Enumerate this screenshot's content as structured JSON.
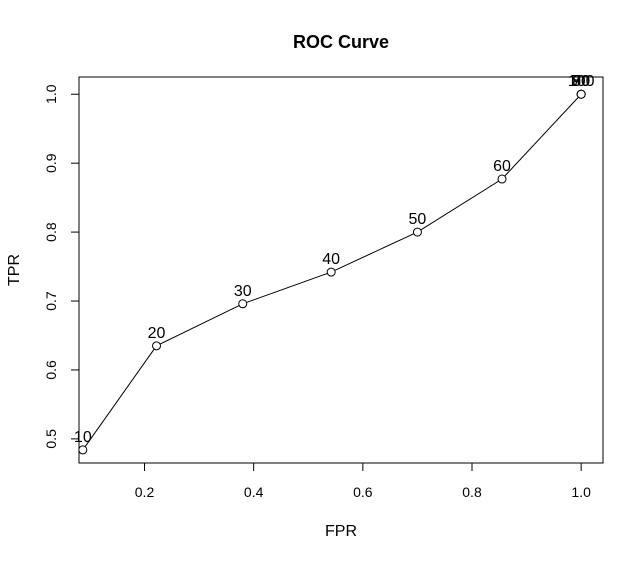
{
  "chart_data": {
    "type": "line",
    "title": "ROC Curve",
    "xlabel": "FPR",
    "ylabel": "TPR",
    "xlim": [
      0.08,
      1.04
    ],
    "ylim": [
      0.465,
      1.025
    ],
    "x_ticks": [
      0.2,
      0.4,
      0.6,
      0.8,
      1.0
    ],
    "x_tick_labels": [
      "0.2",
      "0.4",
      "0.6",
      "0.8",
      "1.0"
    ],
    "y_ticks": [
      0.5,
      0.6,
      0.7,
      0.8,
      0.9,
      1.0
    ],
    "y_tick_labels": [
      "0.5",
      "0.6",
      "0.7",
      "0.8",
      "0.9",
      "1.0"
    ],
    "grid": false,
    "series": [
      {
        "x": [
          0.087,
          0.222,
          0.38,
          0.542,
          0.7,
          0.855,
          1.0,
          1.0,
          1.0,
          1.0
        ],
        "y": [
          0.484,
          0.635,
          0.696,
          0.742,
          0.8,
          0.877,
          1.0,
          1.0,
          1.0,
          1.0
        ],
        "point_labels": [
          "10",
          "20",
          "30",
          "40",
          "50",
          "60",
          "70",
          "80",
          "90",
          "100"
        ],
        "color": "#000000",
        "marker": "open-circle"
      }
    ]
  }
}
